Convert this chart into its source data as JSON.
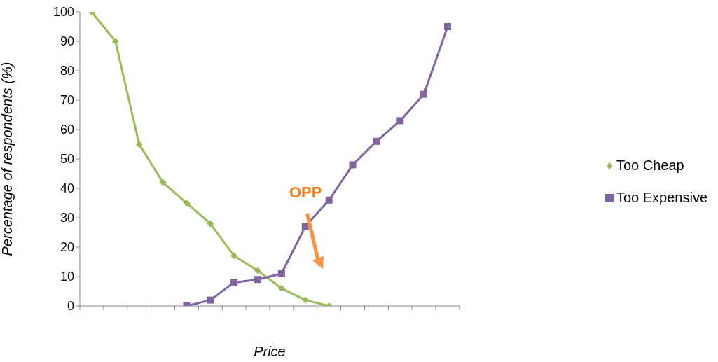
{
  "chart_data": {
    "type": "line",
    "xlabel": "Price",
    "ylabel": "Percentage of respondents (%)",
    "categories": [
      null,
      null,
      null,
      null,
      null,
      null,
      null,
      null,
      null,
      null,
      null,
      null,
      null,
      null,
      null,
      null
    ],
    "series": [
      {
        "name": "Too Cheap",
        "color": "#9bbb59",
        "marker": "diamond",
        "values": [
          100,
          90,
          55,
          42,
          35,
          28,
          17,
          12,
          6,
          2,
          0,
          null,
          null,
          null,
          null,
          null
        ]
      },
      {
        "name": "Too Expensive",
        "color": "#8064a2",
        "marker": "square",
        "values": [
          null,
          null,
          null,
          null,
          0,
          2,
          8,
          9,
          11,
          27,
          36,
          48,
          56,
          63,
          72,
          95
        ]
      }
    ],
    "ylim": [
      0,
      100
    ],
    "yticks": [
      0,
      10,
      20,
      30,
      40,
      50,
      60,
      70,
      80,
      90,
      100
    ],
    "grid": false,
    "legend": "right",
    "annotations": [
      "OPP"
    ]
  }
}
